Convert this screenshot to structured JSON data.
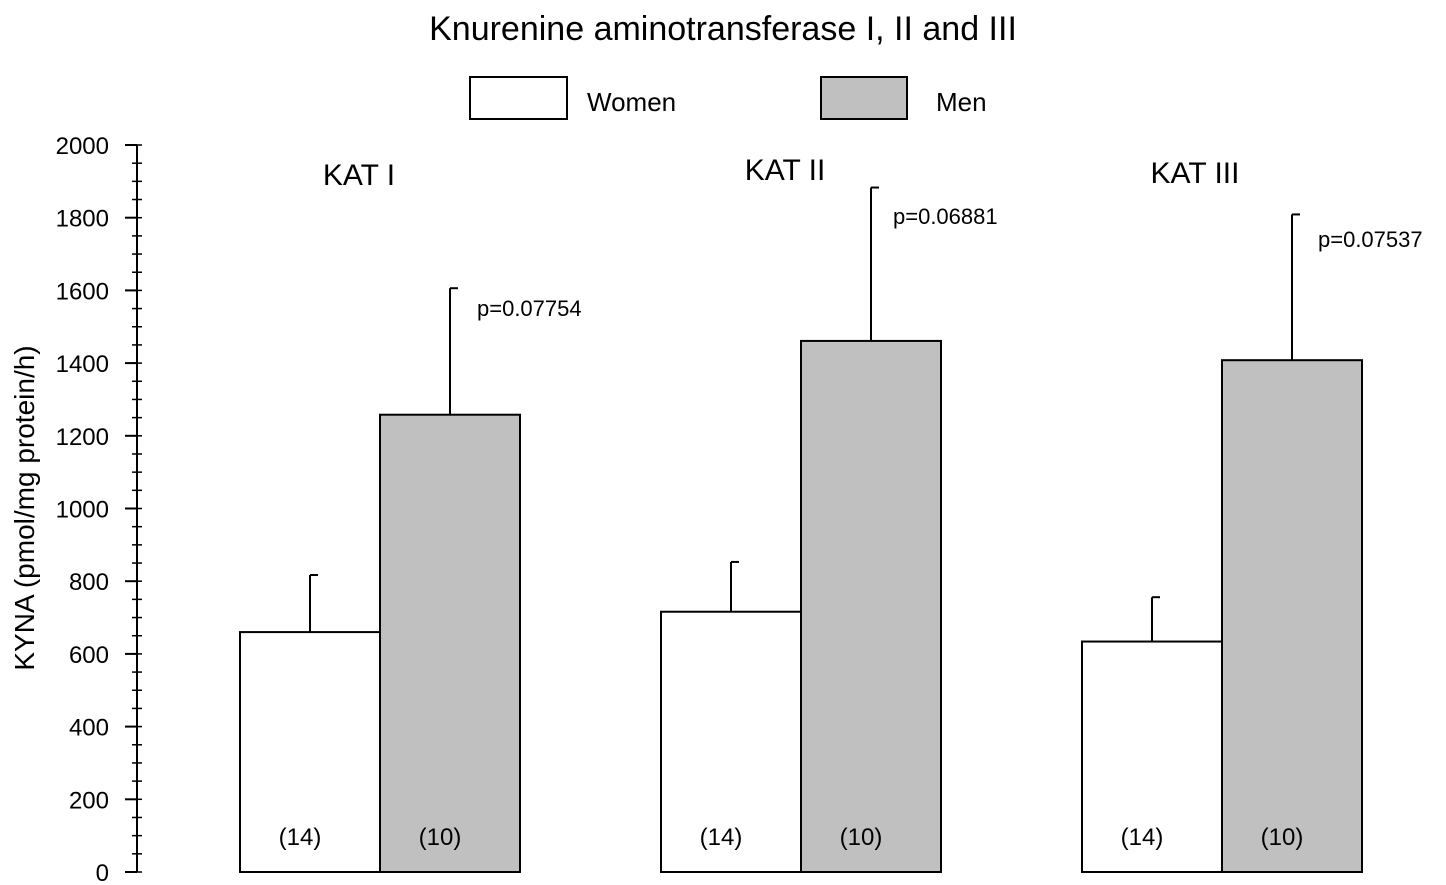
{
  "chart_data": {
    "type": "bar",
    "title": "Knurenine aminotransferase I, II and III",
    "ylabel": "KYNA (pmol/mg protein/h)",
    "xlabel": "",
    "ylim": [
      0,
      2000
    ],
    "yticks": [
      0,
      200,
      400,
      600,
      800,
      1000,
      1200,
      1400,
      1600,
      1800,
      2000
    ],
    "categories": [
      "KAT I",
      "KAT II",
      "KAT III"
    ],
    "series": [
      {
        "name": "Women",
        "color": "#ffffff",
        "values": [
          660,
          716,
          634
        ],
        "errors": [
          157,
          137,
          122
        ],
        "n_labels": [
          "(14)",
          "(14)",
          "(14)"
        ]
      },
      {
        "name": "Men",
        "color": "#c0c0c0",
        "values": [
          1258,
          1461,
          1408
        ],
        "errors": [
          348,
          422,
          401
        ],
        "n_labels": [
          "(10)",
          "(10)",
          "(10)"
        ]
      }
    ],
    "p_values": [
      "p=0.07754",
      "p=0.06881",
      "p=0.07537"
    ],
    "legend_position": "top-center",
    "grid": false
  }
}
